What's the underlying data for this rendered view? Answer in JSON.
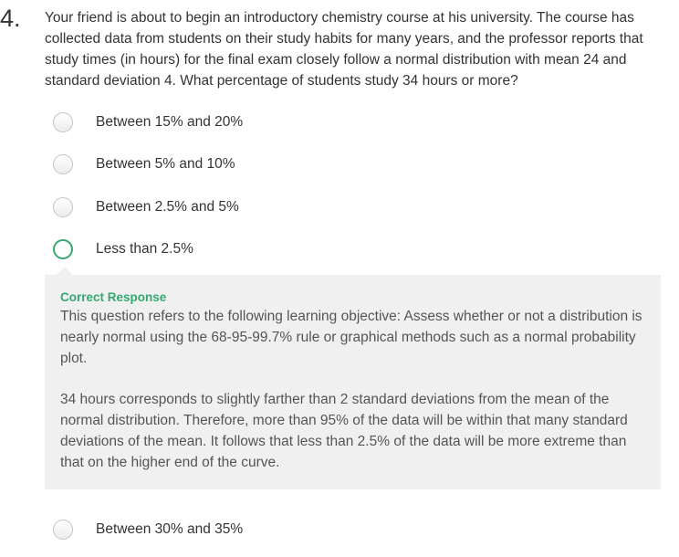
{
  "question": {
    "number": "4.",
    "text": "Your friend is about to begin an introductory chemistry course at his university. The course has collected data from students on their study habits for many years, and the professor reports that study times (in hours) for the final exam closely follow a normal distribution with mean 24 and standard deviation 4. What percentage of students study 34 hours or more?"
  },
  "options": [
    {
      "label": "Between 15% and 20%",
      "state": "unselected"
    },
    {
      "label": "Between 5% and 10%",
      "state": "unselected"
    },
    {
      "label": "Between 2.5% and 5%",
      "state": "unselected"
    },
    {
      "label": "Less than 2.5%",
      "state": "correct"
    },
    {
      "label": "Between 30% and 35%",
      "state": "unselected"
    }
  ],
  "feedback": {
    "title": "Correct Response",
    "paragraphs": [
      "This question refers to the following learning objective: Assess whether or not a distribution is nearly normal using the 68-95-99.7% rule or graphical methods such as a normal probability plot.",
      "34 hours corresponds to slightly farther than 2 standard deviations from the mean of the normal distribution. Therefore, more than 95% of the data will be within that many standard deviations of the mean. It follows that less than 2.5% of the data will be more extreme than that on the higher end of the curve."
    ]
  },
  "colors": {
    "correct_accent": "#35a872",
    "feedback_background": "#f0f0f0",
    "text": "#333333"
  }
}
